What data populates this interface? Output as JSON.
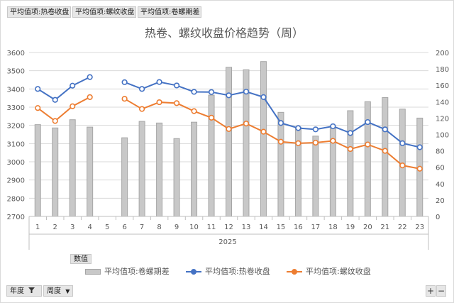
{
  "pivot": {
    "value_fields": [
      "平均值项:热卷收盘",
      "平均值项:螺纹收盘",
      "平均值项:卷螺期差"
    ],
    "values_label": "数值",
    "row_filters": [
      {
        "label": "年度",
        "icon": "filter-icon"
      },
      {
        "label": "周度",
        "icon": "dropdown-icon"
      }
    ],
    "zoom_in": "+",
    "zoom_out": "−"
  },
  "colors": {
    "hot_coil": "#4472c4",
    "rebar": "#ed7d31",
    "spread_fill": "#c8c8c8",
    "spread_stroke": "#a6a6a6",
    "title": "#595959",
    "grid": "#d9d9d9"
  },
  "chart_data": {
    "type": "bar+line",
    "title": "热卷、螺纹收盘价格趋势（周）",
    "categories": [
      "1",
      "2",
      "3",
      "4",
      "5",
      "6",
      "7",
      "8",
      "9",
      "10",
      "11",
      "12",
      "13",
      "14",
      "15",
      "16",
      "17",
      "18",
      "19",
      "20",
      "21",
      "22",
      "23"
    ],
    "group_label": "2025",
    "y_left": {
      "min": 2700,
      "max": 3600,
      "step": 100,
      "ticks": [
        "2700",
        "2800",
        "2900",
        "3000",
        "3100",
        "3200",
        "3300",
        "3400",
        "3500",
        "3600"
      ]
    },
    "y_right": {
      "min": 0,
      "max": 200,
      "step": 20,
      "ticks": [
        "0",
        "20",
        "40",
        "60",
        "80",
        "100",
        "120",
        "140",
        "160",
        "180",
        "200"
      ]
    },
    "grid": true,
    "legend_position": "bottom",
    "series": [
      {
        "name": "平均值项:卷螺期差",
        "type": "bar",
        "axis": "right",
        "values": [
          112,
          108,
          118,
          109,
          null,
          96,
          116,
          114,
          95,
          115,
          148,
          182,
          179,
          189,
          127,
          109,
          98,
          108,
          129,
          140,
          145,
          131,
          120
        ]
      },
      {
        "name": "平均值项:热卷收盘",
        "type": "line",
        "axis": "left",
        "values": [
          3400,
          3340,
          3418,
          3465,
          null,
          3437,
          3400,
          3438,
          3419,
          3384,
          3383,
          3365,
          3385,
          3355,
          3213,
          3185,
          3178,
          3195,
          3158,
          3218,
          3178,
          3102,
          3080
        ]
      },
      {
        "name": "平均值项:螺纹收盘",
        "type": "line",
        "axis": "left",
        "values": [
          3295,
          3224,
          3305,
          3355,
          null,
          3346,
          3290,
          3327,
          3322,
          3278,
          3242,
          3180,
          3210,
          3165,
          3110,
          3102,
          3105,
          3115,
          3070,
          3095,
          3060,
          2980,
          2962
        ]
      }
    ]
  }
}
